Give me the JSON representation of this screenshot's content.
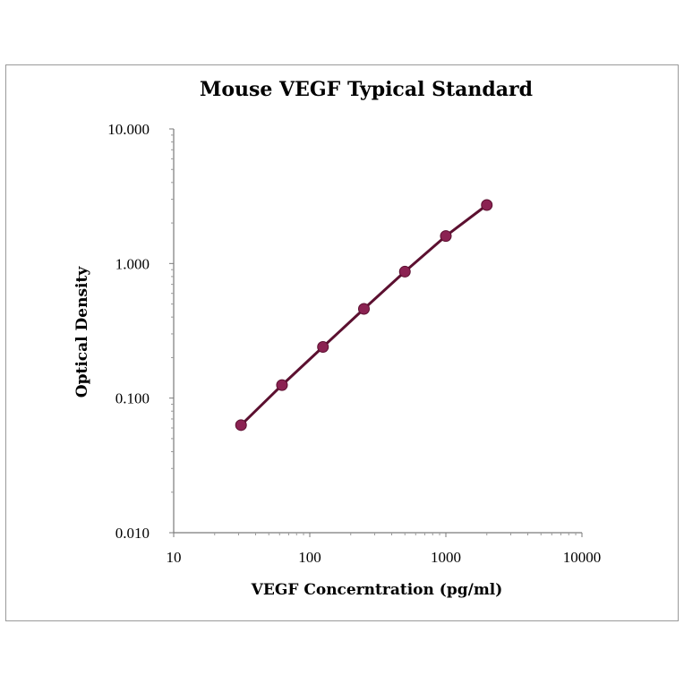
{
  "chart_data": {
    "type": "scatter",
    "title": "Mouse VEGF Typical Standard",
    "xlabel": "VEGF Concerntration (pg/ml)",
    "ylabel": "Optical Density",
    "xscale": "log",
    "yscale": "log",
    "xlim": [
      10,
      10000
    ],
    "ylim": [
      0.01,
      10
    ],
    "xticks": [
      10,
      100,
      1000,
      10000
    ],
    "xtick_labels": [
      "10",
      "100",
      "1000",
      "10000"
    ],
    "yticks": [
      0.01,
      0.1,
      1,
      10
    ],
    "ytick_labels": [
      "0.010",
      "0.100",
      "1.000",
      "10.000"
    ],
    "grid": false,
    "legend": "none",
    "fit_line": true,
    "series": [
      {
        "x": [
          31.25,
          62.5,
          125,
          250,
          500,
          1000,
          2000
        ],
        "y": [
          0.063,
          0.125,
          0.24,
          0.46,
          0.87,
          1.6,
          2.72
        ],
        "color": "#8b2252",
        "line_color": "#5c1030"
      }
    ]
  }
}
